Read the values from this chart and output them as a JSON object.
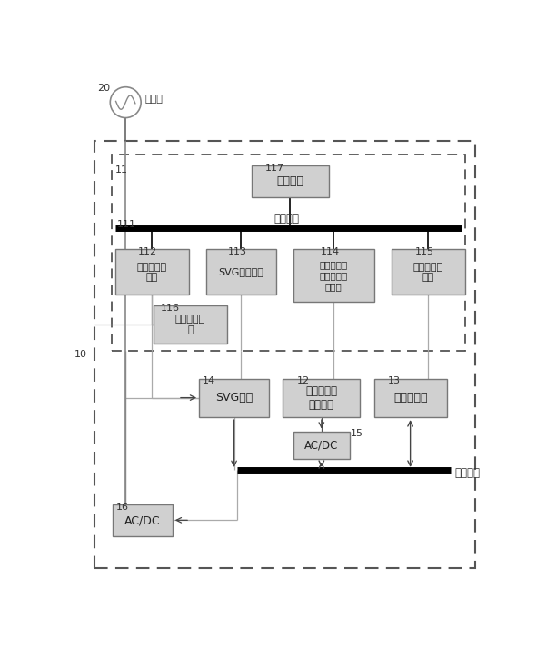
{
  "fig_width": 6.01,
  "fig_height": 7.14,
  "dpi": 100,
  "bg_color": "#ffffff",
  "box_fill": "#cccccc",
  "box_fill_light": "#e0e0e0",
  "box_edge": "#888888",
  "label_20": "20",
  "label_10": "10",
  "label_11": "11",
  "label_111": "111",
  "label_112": "112",
  "label_113": "113",
  "label_114": "114",
  "label_115": "115",
  "label_116": "116",
  "label_117": "117",
  "label_12": "12",
  "label_13": "13",
  "label_14": "14",
  "label_15": "15",
  "label_16": "16",
  "text_grid": "配电网",
  "text_comm_bus": "通信总线",
  "text_dc_bus": "直流母线",
  "text_center": "中控模块",
  "text_grid_module": "配电网联路\n模块",
  "text_svg_monitor": "SVG监控模块",
  "text_renewable_monitor": "可再生能源\n发电设备监\n控模块",
  "text_battery_monitor": "蓄电池监控\n模块",
  "text_grid_connect": "并网监控模\n块",
  "text_svg": "SVG模块",
  "text_renewable": "可再生能源\n发电设备",
  "text_battery": "蓄电池模块",
  "text_acdc1": "AC/DC",
  "text_acdc2": "AC/DC"
}
